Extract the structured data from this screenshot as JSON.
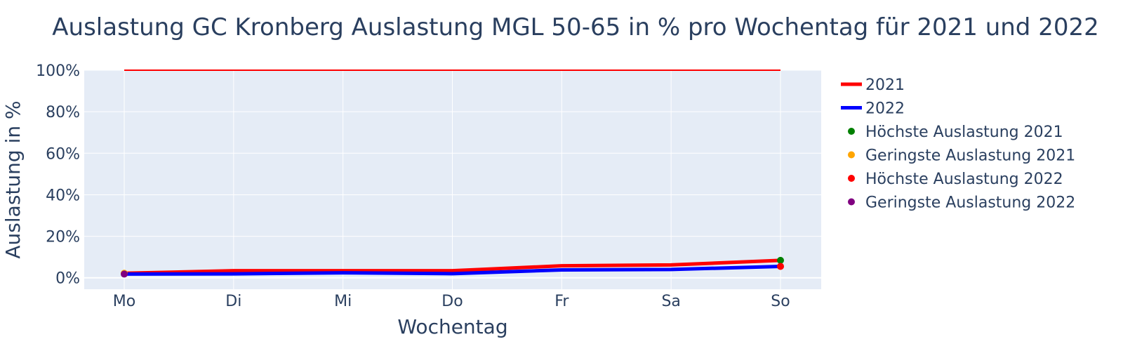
{
  "chart_data": {
    "type": "line",
    "title": "Auslastung GC Kronberg Auslastung MGL 50-65 in % pro Wochentag für 2021 und 2022",
    "xlabel": "Wochentag",
    "ylabel": "Auslastung in %",
    "categories": [
      "Mo",
      "Di",
      "Mi",
      "Do",
      "Fr",
      "Sa",
      "So"
    ],
    "ylim": [
      -5.5,
      100
    ],
    "yticks": [
      0,
      20,
      40,
      60,
      80,
      100
    ],
    "ytick_labels": [
      "0%",
      "20%",
      "40%",
      "60%",
      "80%",
      "100%"
    ],
    "grid": true,
    "legend_position": "right",
    "reference_line": {
      "y": 100,
      "color": "#ff0000"
    },
    "series": [
      {
        "name": "2021",
        "color": "#ff0000",
        "values": [
          2.2,
          3.4,
          3.4,
          3.4,
          5.8,
          6.2,
          8.4
        ]
      },
      {
        "name": "2022",
        "color": "#0000ff",
        "values": [
          1.8,
          1.9,
          2.4,
          2.0,
          3.8,
          4.0,
          5.5
        ]
      }
    ],
    "markers": [
      {
        "name": "Höchste Auslastung 2021",
        "color": "#008000",
        "x": "So",
        "y": 8.4
      },
      {
        "name": "Geringste Auslastung 2021",
        "color": "#ffa500",
        "x": "Mo",
        "y": 2.2
      },
      {
        "name": "Höchste Auslastung 2022",
        "color": "#ff0000",
        "x": "So",
        "y": 5.5
      },
      {
        "name": "Geringste Auslastung 2022",
        "color": "#800080",
        "x": "Mo",
        "y": 1.8
      }
    ]
  }
}
